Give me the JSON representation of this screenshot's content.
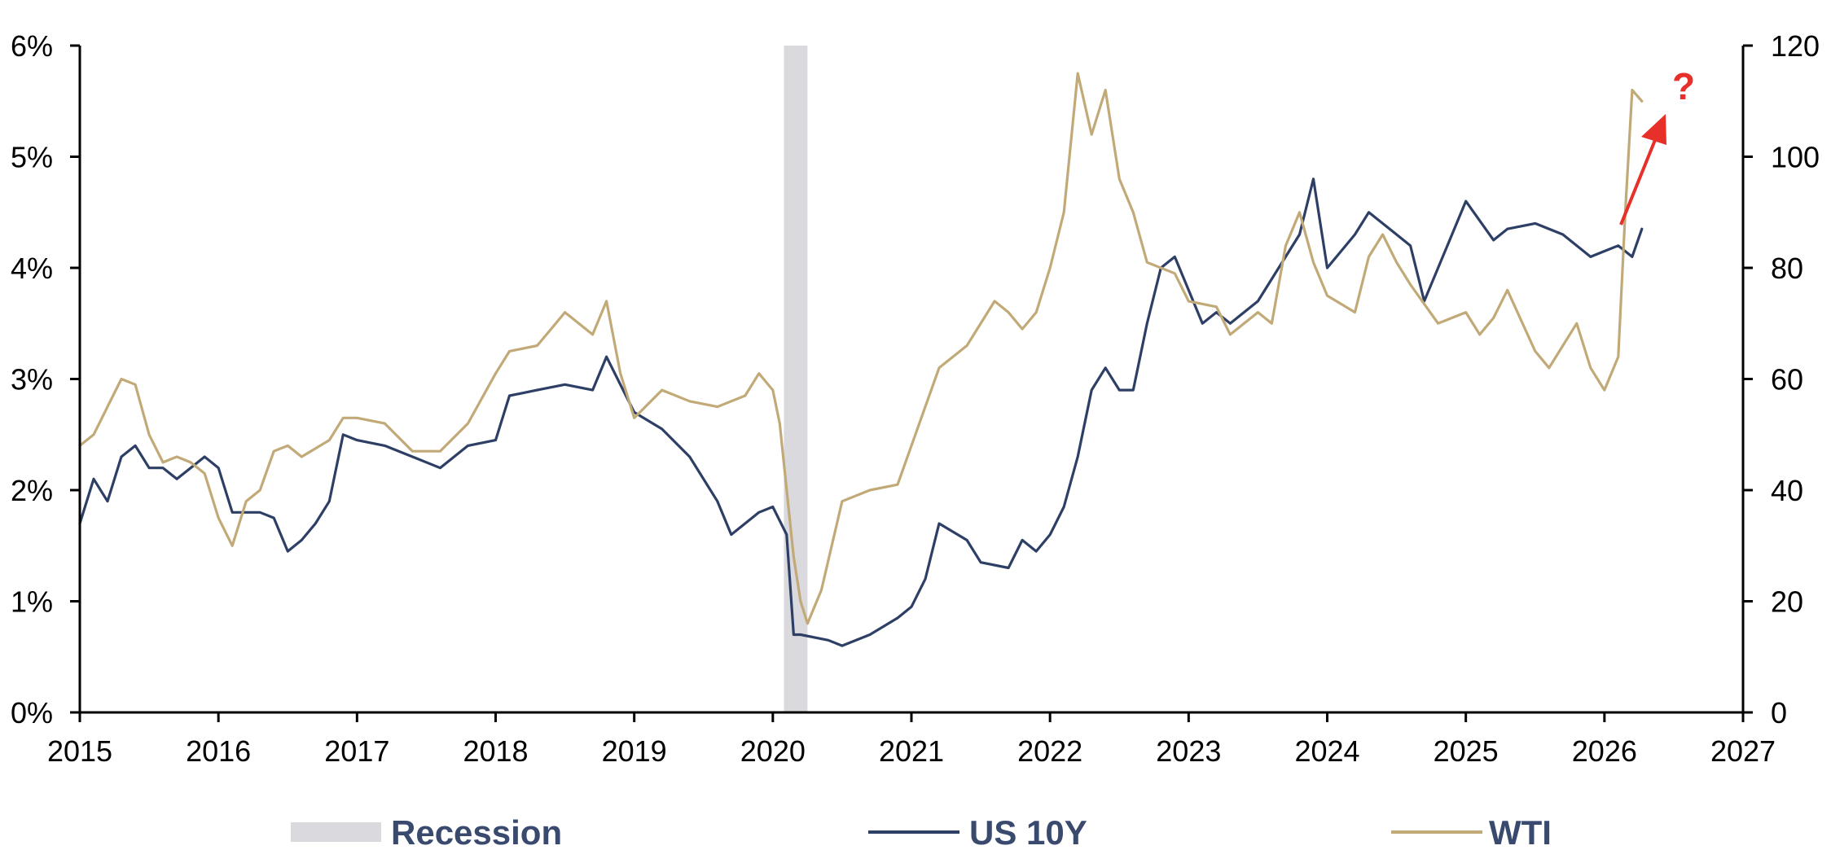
{
  "chart_data": {
    "type": "line",
    "title": "",
    "xlabel": "",
    "ylabel_left": "",
    "ylabel_right": "",
    "x_range": [
      2015,
      2027
    ],
    "x_ticks": [
      "2015",
      "2016",
      "2017",
      "2018",
      "2019",
      "2020",
      "2021",
      "2022",
      "2023",
      "2024",
      "2025",
      "2026",
      "2027"
    ],
    "y_left_range": [
      0,
      6
    ],
    "y_left_ticks": [
      "0%",
      "1%",
      "2%",
      "3%",
      "4%",
      "5%",
      "6%"
    ],
    "y_right_range": [
      0,
      120
    ],
    "y_right_ticks": [
      "0",
      "20",
      "40",
      "60",
      "80",
      "100",
      "120"
    ],
    "grid": false,
    "legend_position": "bottom",
    "recession": {
      "name": "Recession",
      "start": 2020.08,
      "end": 2020.25,
      "color": "#d9d9de"
    },
    "series": [
      {
        "name": "US 10Y",
        "axis": "left",
        "color": "#2e3f66",
        "x": [
          2015.0,
          2015.1,
          2015.2,
          2015.3,
          2015.4,
          2015.5,
          2015.6,
          2015.7,
          2015.8,
          2015.9,
          2016.0,
          2016.1,
          2016.2,
          2016.3,
          2016.4,
          2016.5,
          2016.6,
          2016.7,
          2016.8,
          2016.9,
          2017.0,
          2017.2,
          2017.4,
          2017.6,
          2017.8,
          2018.0,
          2018.1,
          2018.3,
          2018.5,
          2018.7,
          2018.8,
          2019.0,
          2019.2,
          2019.4,
          2019.6,
          2019.7,
          2019.9,
          2020.0,
          2020.1,
          2020.15,
          2020.2,
          2020.4,
          2020.5,
          2020.7,
          2020.9,
          2021.0,
          2021.1,
          2021.2,
          2021.4,
          2021.5,
          2021.7,
          2021.8,
          2021.9,
          2022.0,
          2022.1,
          2022.2,
          2022.3,
          2022.4,
          2022.5,
          2022.6,
          2022.7,
          2022.8,
          2022.9,
          2023.0,
          2023.1,
          2023.2,
          2023.3,
          2023.5,
          2023.6,
          2023.8,
          2023.9,
          2024.0,
          2024.2,
          2024.3,
          2024.5,
          2024.6,
          2024.7,
          2024.9,
          2025.0,
          2025.2,
          2025.3,
          2025.5,
          2025.7,
          2025.9,
          2026.0,
          2026.1,
          2026.2,
          2026.27
        ],
        "values": [
          1.7,
          2.1,
          1.9,
          2.3,
          2.4,
          2.2,
          2.2,
          2.1,
          2.2,
          2.3,
          2.2,
          1.8,
          1.8,
          1.8,
          1.75,
          1.45,
          1.55,
          1.7,
          1.9,
          2.5,
          2.45,
          2.4,
          2.3,
          2.2,
          2.4,
          2.45,
          2.85,
          2.9,
          2.95,
          2.9,
          3.2,
          2.7,
          2.55,
          2.3,
          1.9,
          1.6,
          1.8,
          1.85,
          1.6,
          0.7,
          0.7,
          0.65,
          0.6,
          0.7,
          0.85,
          0.95,
          1.2,
          1.7,
          1.55,
          1.35,
          1.3,
          1.55,
          1.45,
          1.6,
          1.85,
          2.3,
          2.9,
          3.1,
          2.9,
          2.9,
          3.5,
          4.0,
          4.1,
          3.8,
          3.5,
          3.6,
          3.5,
          3.7,
          3.9,
          4.3,
          4.8,
          4.0,
          4.3,
          4.5,
          4.3,
          4.2,
          3.7,
          4.3,
          4.6,
          4.25,
          4.35,
          4.4,
          4.3,
          4.1,
          4.15,
          4.2,
          4.1,
          4.35
        ]
      },
      {
        "name": "WTI",
        "axis": "right",
        "color": "#c2aa78",
        "x": [
          2015.0,
          2015.1,
          2015.2,
          2015.3,
          2015.4,
          2015.5,
          2015.6,
          2015.7,
          2015.8,
          2015.9,
          2016.0,
          2016.1,
          2016.2,
          2016.3,
          2016.4,
          2016.5,
          2016.6,
          2016.8,
          2016.9,
          2017.0,
          2017.2,
          2017.4,
          2017.6,
          2017.8,
          2018.0,
          2018.1,
          2018.3,
          2018.4,
          2018.5,
          2018.7,
          2018.8,
          2018.9,
          2019.0,
          2019.2,
          2019.4,
          2019.6,
          2019.8,
          2019.9,
          2020.0,
          2020.05,
          2020.15,
          2020.2,
          2020.25,
          2020.35,
          2020.5,
          2020.7,
          2020.9,
          2021.0,
          2021.2,
          2021.4,
          2021.6,
          2021.7,
          2021.8,
          2021.9,
          2022.0,
          2022.1,
          2022.2,
          2022.3,
          2022.4,
          2022.5,
          2022.6,
          2022.7,
          2022.9,
          2023.0,
          2023.2,
          2023.3,
          2023.5,
          2023.6,
          2023.7,
          2023.8,
          2023.9,
          2024.0,
          2024.2,
          2024.3,
          2024.4,
          2024.5,
          2024.6,
          2024.8,
          2025.0,
          2025.1,
          2025.2,
          2025.3,
          2025.5,
          2025.6,
          2025.8,
          2025.9,
          2026.0,
          2026.1,
          2026.15,
          2026.2,
          2026.27
        ],
        "values": [
          48,
          50,
          55,
          60,
          59,
          50,
          45,
          46,
          45,
          43,
          35,
          30,
          38,
          40,
          47,
          48,
          46,
          49,
          53,
          53,
          52,
          47,
          47,
          52,
          61,
          65,
          66,
          69,
          72,
          68,
          74,
          61,
          53,
          58,
          56,
          55,
          57,
          61,
          58,
          52,
          28,
          20,
          16,
          22,
          38,
          40,
          41,
          48,
          62,
          66,
          74,
          72,
          69,
          72,
          80,
          90,
          115,
          104,
          112,
          96,
          90,
          81,
          79,
          74,
          73,
          68,
          72,
          70,
          84,
          90,
          81,
          75,
          72,
          82,
          86,
          81,
          77,
          70,
          72,
          68,
          71,
          76,
          65,
          62,
          70,
          62,
          58,
          64,
          90,
          112,
          110
        ]
      }
    ],
    "annotation": {
      "text": "?",
      "color": "#e8302a"
    }
  }
}
